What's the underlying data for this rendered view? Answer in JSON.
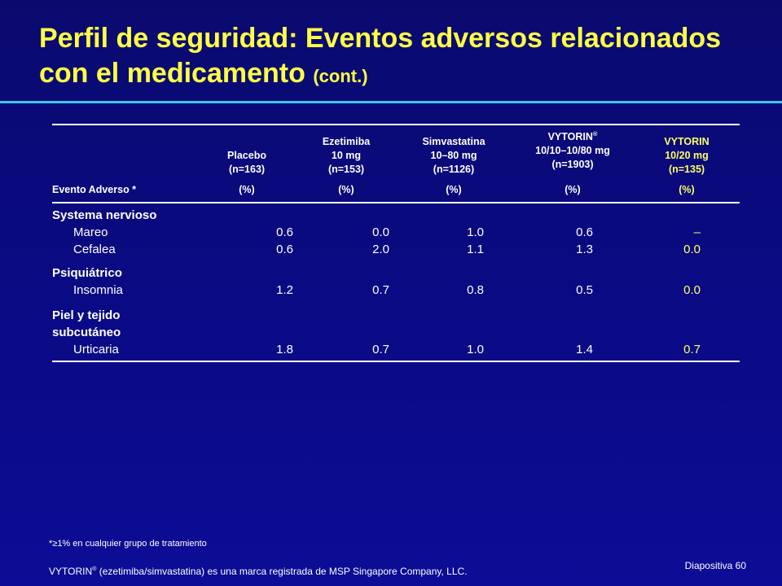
{
  "title": {
    "main": "Perfil de seguridad: Eventos adversos relacionados con el medicamento ",
    "suffix": "(cont.)"
  },
  "colors": {
    "background": "#0a0a80",
    "title": "#ffff44",
    "rule": "#35c8e8",
    "highlight": "#ffff66",
    "text": "#ffffff"
  },
  "table": {
    "headers": [
      {
        "lines": [
          "Evento Adverso *"
        ],
        "pct": ""
      },
      {
        "lines": [
          "Placebo",
          "(n=163)"
        ],
        "pct": "(%)"
      },
      {
        "lines": [
          "Ezetimiba",
          "10 mg",
          "(n=153)"
        ],
        "pct": "(%)"
      },
      {
        "lines": [
          "Simvastatina",
          "10–80 mg",
          "(n=1126)"
        ],
        "pct": "(%)"
      },
      {
        "lines": [
          "VYTORIN",
          "10/10–10/80 mg",
          "(n=1903)"
        ],
        "pct": "(%)",
        "sup": "®"
      },
      {
        "lines": [
          "VYTORIN",
          "10/20 mg",
          "(n=135)"
        ],
        "pct": "(%)"
      }
    ],
    "groups": [
      {
        "name": "Systema nervioso",
        "rows": [
          {
            "event": "Mareo",
            "values": [
              "0.6",
              "0.0",
              "1.0",
              "0.6",
              "–"
            ]
          },
          {
            "event": "Cefalea",
            "values": [
              "0.6",
              "2.0",
              "1.1",
              "1.3",
              "0.0"
            ]
          }
        ]
      },
      {
        "name": "Psiquiátrico",
        "rows": [
          {
            "event": "Insomnia",
            "values": [
              "1.2",
              "0.7",
              "0.8",
              "0.5",
              "0.0"
            ]
          }
        ]
      },
      {
        "name_lines": [
          "Piel y tejido",
          "subcutáneo"
        ],
        "rows": [
          {
            "event": "Urticaria",
            "values": [
              "1.8",
              "0.7",
              "1.0",
              "1.4",
              "0.7"
            ]
          }
        ]
      }
    ]
  },
  "footnote": "*≥1% en cualquier grupo de tratamiento",
  "trademark": {
    "brand": "VYTORIN",
    "sup": "®",
    "text": " (ezetimiba/simvastatina) es una marca registrada de MSP Singapore Company, LLC."
  },
  "slide_number": "Diapositiva 60"
}
